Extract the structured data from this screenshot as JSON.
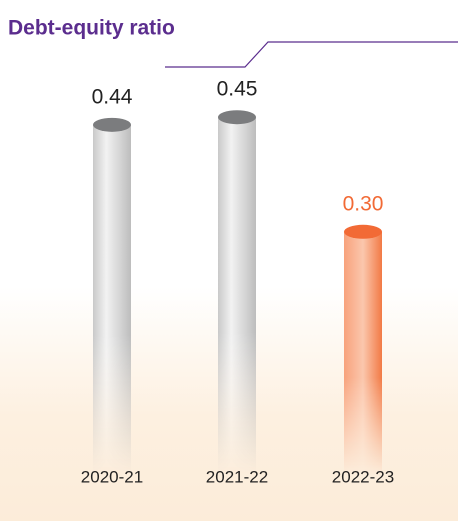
{
  "chart_data": {
    "type": "bar",
    "title": "Debt-equity ratio",
    "categories": [
      "2020-21",
      "2021-22",
      "2022-23"
    ],
    "values": [
      0.44,
      0.45,
      0.3
    ],
    "value_labels": [
      "0.44",
      "0.45",
      "0.30"
    ],
    "colors": [
      "#7b7c7e",
      "#7b7c7e",
      "#f26a35"
    ]
  }
}
